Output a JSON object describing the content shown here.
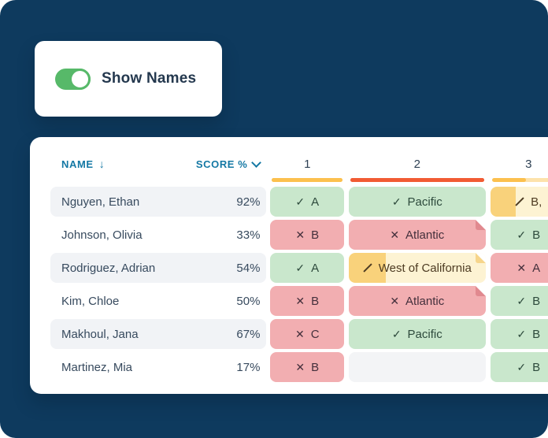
{
  "colors": {
    "panel_bg": "#0e3a5e",
    "card_bg": "#ffffff",
    "accent_green": "#57b969",
    "header_teal": "#1478a4",
    "stripe_bg": "#f1f3f6",
    "correct_bg": "#c9e7cc",
    "incorrect_bg": "#f2aeb1",
    "partial_fill": "#f9d27b",
    "partial_track": "#fdf3d3",
    "empty_bg": "#f3f4f6"
  },
  "icons": {
    "check": "✓",
    "x": "✕",
    "arrow_down": "↓"
  },
  "toggle_card": {
    "label": "Show Names",
    "state": "on"
  },
  "table": {
    "name_header": "NAME",
    "score_header": "SCORE %",
    "questions": [
      {
        "label": "1",
        "bar_color": "#fcc04e",
        "bar_track": "#fcc04e",
        "bar_fill_pct": 100
      },
      {
        "label": "2",
        "bar_color": "#f15b33",
        "bar_track": "#f15b33",
        "bar_fill_pct": 100
      },
      {
        "label": "3",
        "bar_color": "#fcc04e",
        "bar_track": "#fde2ab",
        "bar_fill_pct": 46
      }
    ],
    "rows": [
      {
        "name": "Nguyen, Ethan",
        "score": "92%",
        "answers": [
          {
            "text": "A",
            "status": "correct"
          },
          {
            "text": "Pacific",
            "status": "correct"
          },
          {
            "text": "B,",
            "status": "partial",
            "fill_pct": 33
          }
        ]
      },
      {
        "name": "Johnson, Olivia",
        "score": "33%",
        "answers": [
          {
            "text": "B",
            "status": "incorrect"
          },
          {
            "text": "Atlantic",
            "status": "incorrect",
            "has_note": true
          },
          {
            "text": "B",
            "status": "correct"
          }
        ]
      },
      {
        "name": "Rodriguez, Adrian",
        "score": "54%",
        "answers": [
          {
            "text": "A",
            "status": "correct"
          },
          {
            "text": "West of California",
            "status": "partial",
            "fill_pct": 27,
            "has_note": true
          },
          {
            "text": "A",
            "status": "incorrect"
          }
        ]
      },
      {
        "name": "Kim, Chloe",
        "score": "50%",
        "answers": [
          {
            "text": "B",
            "status": "incorrect"
          },
          {
            "text": "Atlantic",
            "status": "incorrect",
            "has_note": true
          },
          {
            "text": "B",
            "status": "correct"
          }
        ]
      },
      {
        "name": "Makhoul, Jana",
        "score": "67%",
        "answers": [
          {
            "text": "C",
            "status": "incorrect"
          },
          {
            "text": "Pacific",
            "status": "correct"
          },
          {
            "text": "B",
            "status": "correct"
          }
        ]
      },
      {
        "name": "Martinez, Mia",
        "score": "17%",
        "answers": [
          {
            "text": "B",
            "status": "incorrect"
          },
          {
            "text": "",
            "status": "empty"
          },
          {
            "text": "B",
            "status": "correct"
          }
        ]
      }
    ]
  }
}
